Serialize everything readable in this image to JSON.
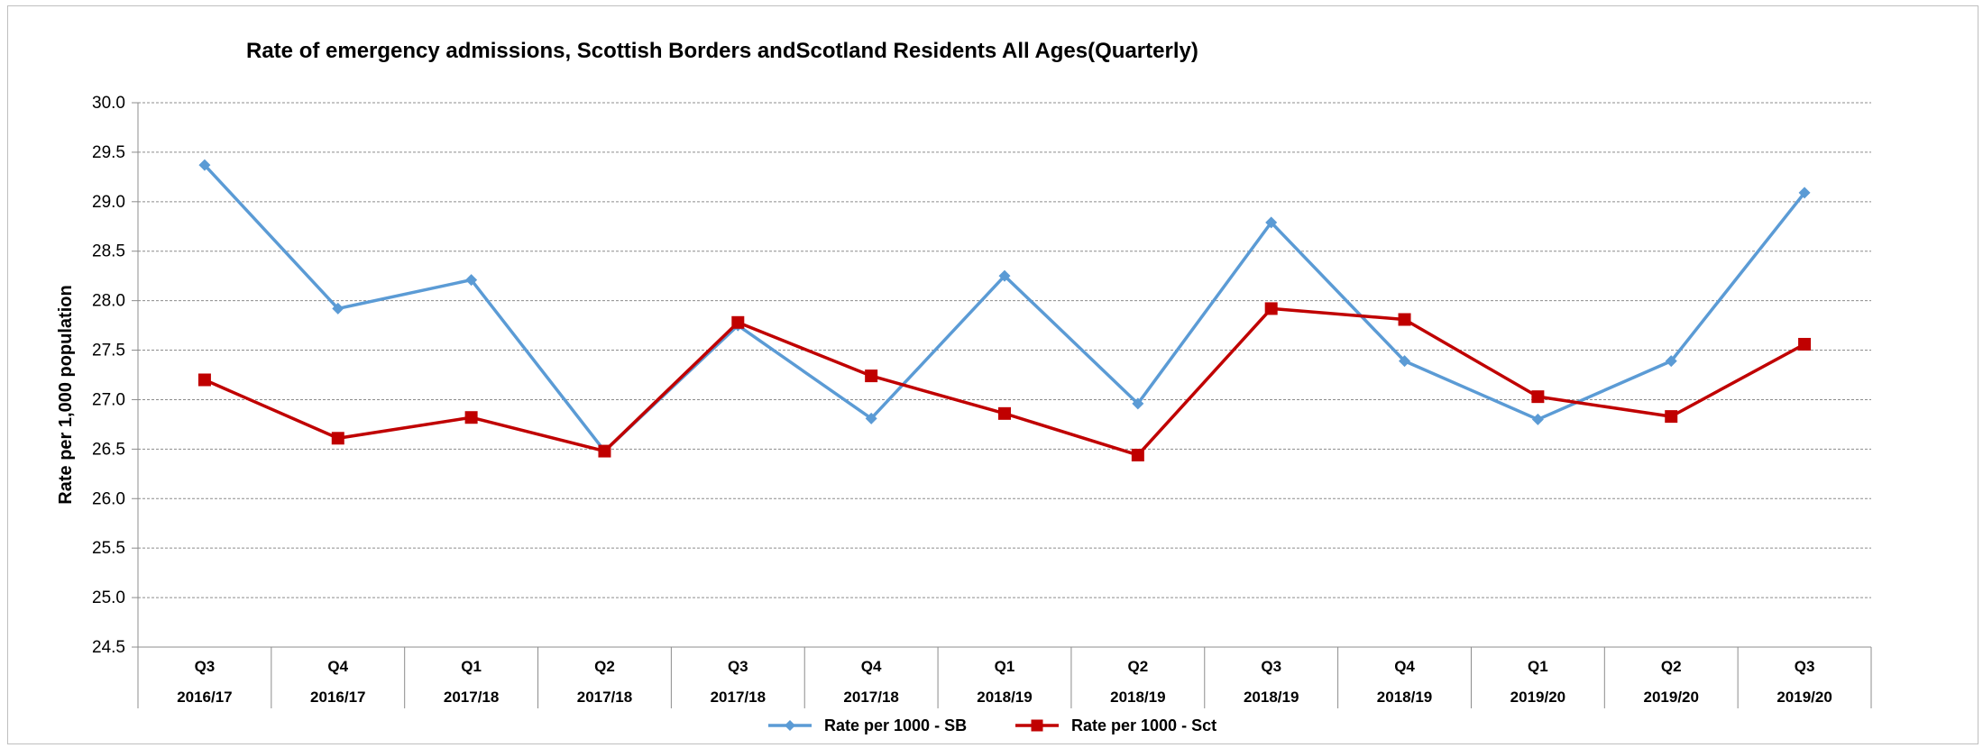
{
  "chart_data": {
    "type": "line",
    "title": "Rate of emergency admissions, Scottish Borders andScotland Residents All Ages(Quarterly)",
    "ylabel": "Rate per 1,000 population",
    "xlabel": "",
    "ylim": [
      24.5,
      30.0
    ],
    "yticks": [
      "30.0",
      "29.5",
      "29.0",
      "28.5",
      "28.0",
      "27.5",
      "27.0",
      "26.5",
      "26.0",
      "25.5",
      "25.0",
      "24.5"
    ],
    "categories": [
      {
        "quarter": "Q3",
        "year": "2016/17"
      },
      {
        "quarter": "Q4",
        "year": "2016/17"
      },
      {
        "quarter": "Q1",
        "year": "2017/18"
      },
      {
        "quarter": "Q2",
        "year": "2017/18"
      },
      {
        "quarter": "Q3",
        "year": "2017/18"
      },
      {
        "quarter": "Q4",
        "year": "2017/18"
      },
      {
        "quarter": "Q1",
        "year": "2018/19"
      },
      {
        "quarter": "Q2",
        "year": "2018/19"
      },
      {
        "quarter": "Q3",
        "year": "2018/19"
      },
      {
        "quarter": "Q4",
        "year": "2018/19"
      },
      {
        "quarter": "Q1",
        "year": "2019/20"
      },
      {
        "quarter": "Q2",
        "year": "2019/20"
      },
      {
        "quarter": "Q3",
        "year": "2019/20"
      }
    ],
    "series": [
      {
        "name": "Rate per 1000 - SB",
        "color": "#5b9bd5",
        "marker": "diamond",
        "values": [
          29.37,
          27.92,
          28.21,
          26.48,
          27.75,
          26.81,
          28.25,
          26.96,
          28.79,
          27.39,
          26.8,
          27.39,
          29.09
        ]
      },
      {
        "name": "Rate per 1000 - Sct",
        "color": "#c00000",
        "marker": "square",
        "values": [
          27.2,
          26.61,
          26.82,
          26.48,
          27.78,
          27.24,
          26.86,
          26.44,
          27.92,
          27.81,
          27.03,
          26.83,
          27.56
        ]
      }
    ],
    "grid": true,
    "legend": "bottom-center"
  }
}
